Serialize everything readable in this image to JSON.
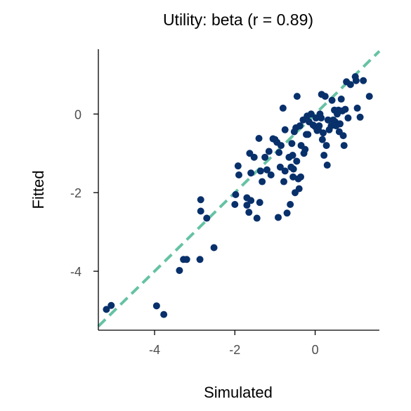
{
  "chart_data": {
    "type": "scatter",
    "title": "Utility: beta (r = 0.89)",
    "xlabel": "Simulated",
    "ylabel": "Fitted",
    "xlim": [
      -5.4,
      1.6
    ],
    "ylim": [
      -5.5,
      1.65
    ],
    "x_ticks": [
      -4,
      -2,
      0
    ],
    "y_ticks": [
      -4,
      -2,
      0
    ],
    "x_tick_labels": [
      "-4",
      "-2",
      "0"
    ],
    "y_tick_labels": [
      "-4",
      "-2",
      "0"
    ],
    "identity_line": {
      "slope": 1,
      "intercept": 0,
      "style": "dashed"
    },
    "colors": {
      "points": "#08306b",
      "line": "#66c2a4"
    },
    "grid": false,
    "points": [
      [
        -5.2,
        -4.97
      ],
      [
        -5.08,
        -4.87
      ],
      [
        -3.95,
        -4.88
      ],
      [
        -3.77,
        -5.1
      ],
      [
        -3.38,
        -3.98
      ],
      [
        -3.28,
        -3.7
      ],
      [
        -3.2,
        -3.7
      ],
      [
        -2.87,
        -3.7
      ],
      [
        -2.52,
        -3.4
      ],
      [
        -2.85,
        -2.18
      ],
      [
        -2.85,
        -2.47
      ],
      [
        -2.7,
        -2.65
      ],
      [
        -2.0,
        -2.3
      ],
      [
        -1.98,
        -2.05
      ],
      [
        -1.9,
        -1.55
      ],
      [
        -1.92,
        -1.32
      ],
      [
        -1.7,
        -2.32
      ],
      [
        -1.7,
        -2.13
      ],
      [
        -1.65,
        -2.5
      ],
      [
        -1.6,
        -2.2
      ],
      [
        -1.6,
        -1.5
      ],
      [
        -1.63,
        -1.0
      ],
      [
        -1.52,
        -1.1
      ],
      [
        -1.45,
        -2.65
      ],
      [
        -1.38,
        -2.25
      ],
      [
        -1.36,
        -1.45
      ],
      [
        -1.32,
        -1.72
      ],
      [
        -1.4,
        -0.62
      ],
      [
        -1.25,
        -1.1
      ],
      [
        -1.2,
        -1.42
      ],
      [
        -1.15,
        -0.95
      ],
      [
        -1.1,
        -1.55
      ],
      [
        -1.05,
        -0.63
      ],
      [
        -1.0,
        -0.65
      ],
      [
        -0.95,
        -0.72
      ],
      [
        -0.92,
        -2.63
      ],
      [
        -0.9,
        -0.98
      ],
      [
        -0.87,
        -1.35
      ],
      [
        -0.85,
        -0.8
      ],
      [
        -0.78,
        -1.72
      ],
      [
        -0.75,
        -1.45
      ],
      [
        -0.75,
        -0.4
      ],
      [
        -0.8,
        0.15
      ],
      [
        -0.7,
        -2.52
      ],
      [
        -0.65,
        -1.1
      ],
      [
        -0.62,
        -2.3
      ],
      [
        -0.6,
        -1.35
      ],
      [
        -0.58,
        -0.75
      ],
      [
        -0.56,
        -1.05
      ],
      [
        -0.55,
        -1.6
      ],
      [
        -0.54,
        -1.4
      ],
      [
        -0.52,
        -0.45
      ],
      [
        -0.5,
        -2.0
      ],
      [
        -0.48,
        -0.35
      ],
      [
        -0.46,
        -1.2
      ],
      [
        -0.45,
        0.45
      ],
      [
        -0.42,
        -1.65
      ],
      [
        -0.4,
        -1.9
      ],
      [
        -0.38,
        -0.3
      ],
      [
        -0.36,
        -1.6
      ],
      [
        -0.35,
        -0.8
      ],
      [
        -0.3,
        -0.15
      ],
      [
        -0.28,
        -1.0
      ],
      [
        -0.25,
        -0.9
      ],
      [
        -0.22,
        -0.52
      ],
      [
        -0.2,
        -0.05
      ],
      [
        -0.18,
        -0.52
      ],
      [
        -0.15,
        -0.2
      ],
      [
        -0.1,
        0.0
      ],
      [
        -0.05,
        -0.28
      ],
      [
        0.0,
        -0.32
      ],
      [
        0.02,
        -0.1
      ],
      [
        0.05,
        -0.42
      ],
      [
        0.08,
        -0.4
      ],
      [
        0.1,
        -0.3
      ],
      [
        0.12,
        0.0
      ],
      [
        0.15,
        -0.1
      ],
      [
        0.16,
        0.5
      ],
      [
        0.18,
        -0.65
      ],
      [
        0.2,
        -0.48
      ],
      [
        0.22,
        -1.05
      ],
      [
        0.25,
        0.45
      ],
      [
        0.28,
        -0.8
      ],
      [
        0.3,
        -1.3
      ],
      [
        0.32,
        -0.15
      ],
      [
        0.35,
        -0.4
      ],
      [
        0.4,
        -0.3
      ],
      [
        0.42,
        0.35
      ],
      [
        0.45,
        -0.15
      ],
      [
        0.48,
        0.1
      ],
      [
        0.5,
        -0.2
      ],
      [
        0.52,
        -0.3
      ],
      [
        0.55,
        0.0
      ],
      [
        0.58,
        0.1
      ],
      [
        0.6,
        -0.45
      ],
      [
        0.62,
        -0.25
      ],
      [
        0.65,
        0.38
      ],
      [
        0.68,
        0.08
      ],
      [
        0.7,
        -0.55
      ],
      [
        0.72,
        -0.8
      ],
      [
        0.75,
        0.12
      ],
      [
        0.78,
        0.82
      ],
      [
        0.82,
        -0.1
      ],
      [
        0.88,
        0.75
      ],
      [
        1.0,
        0.95
      ],
      [
        1.02,
        0.85
      ],
      [
        1.05,
        0.15
      ],
      [
        1.12,
        -0.08
      ],
      [
        1.2,
        0.85
      ],
      [
        1.35,
        0.45
      ]
    ]
  }
}
